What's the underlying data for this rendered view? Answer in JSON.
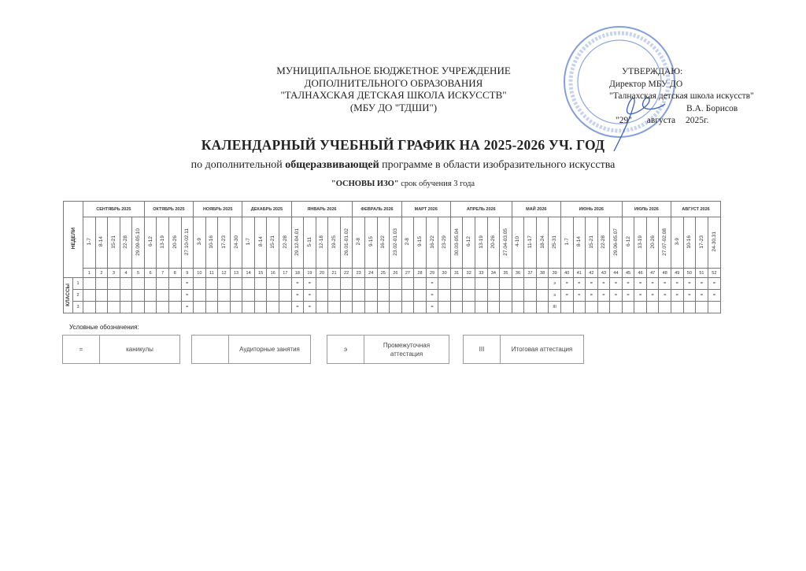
{
  "header": {
    "org_lines": [
      "МУНИЦИПАЛЬНОЕ БЮДЖЕТНОЕ УЧРЕЖДЕНИЕ",
      "ДОПОЛНИТЕЛЬНОГО ОБРАЗОВАНИЯ",
      "\"ТАЛНАХСКАЯ ДЕТСКАЯ ШКОЛА ИСКУССТВ\"",
      "(МБУ ДО \"ТДШИ\")"
    ],
    "approval": {
      "line1": "УТВЕРЖДАЮ:",
      "line2": "Директор МБУ ДО",
      "line3": "\"Талнахская детская школа искусств\"",
      "signer": "В.А. Борисов",
      "day": "\"29\"",
      "month": "августа",
      "year": "2025г."
    },
    "stamp_text": "ТАЛНАХСКАЯ ДЕТСКАЯ ШКОЛА ИСКУССТВ · НОРИЛЬСК · РОССИЙСКАЯ ФЕДЕРАЦИЯ"
  },
  "title": "КАЛЕНДАРНЫЙ УЧЕБНЫЙ ГРАФИК НА  2025-2026 УЧ. ГОД",
  "subtitle": {
    "pre": "по дополнительной ",
    "bold": "общеразвивающей",
    "post": " программе в области изобразительного искусства"
  },
  "program": {
    "bold": "\"ОСНОВЫ ИЗО\"",
    "post": " срок обучения 3 года"
  },
  "table": {
    "weeks_label": "НЕДЕЛИ",
    "classes_label": "КЛАССЫ",
    "months": [
      {
        "name": "СЕНТЯБРЬ 2025",
        "weeks": [
          "1-7",
          "8-14",
          "15-21",
          "22-28",
          "29.09-05.10"
        ]
      },
      {
        "name": "ОКТЯБРЬ 2025",
        "weeks": [
          "6-12",
          "13-19",
          "20-26",
          "27.10-02.11"
        ]
      },
      {
        "name": "НОЯБРЬ 2025",
        "weeks": [
          "3-9",
          "10-16",
          "17-23",
          "24-30"
        ]
      },
      {
        "name": "ДЕКАБРЬ 2025",
        "weeks": [
          "1-7",
          "8-14",
          "15-21",
          "22-28"
        ]
      },
      {
        "name": "ЯНВАРЬ 2026",
        "weeks": [
          "29.12-04.01",
          "5-11",
          "12-18",
          "19-25",
          "26.01-01.02"
        ]
      },
      {
        "name": "ФЕВРАЛЬ 2026",
        "weeks": [
          "2-8",
          "9-15",
          "16-22",
          "23.02-01.03"
        ]
      },
      {
        "name": "МАРТ 2026",
        "weeks": [
          "2-8",
          "9-15",
          "16-22",
          "23-29"
        ]
      },
      {
        "name": "АПРЕЛЬ 2026",
        "weeks": [
          "30.03-05.04",
          "6-12",
          "13-19",
          "20-26",
          "27.04-03.05"
        ]
      },
      {
        "name": "МАЙ 2026",
        "weeks": [
          "4-10",
          "11-17",
          "18-24",
          "25-31"
        ]
      },
      {
        "name": "ИЮНЬ 2026",
        "weeks": [
          "1-7",
          "8-14",
          "15-21",
          "22-28",
          "29.06-05.07"
        ]
      },
      {
        "name": "ИЮЛЬ 2026",
        "weeks": [
          "6-12",
          "13-19",
          "20-26",
          "27.07-02.08"
        ]
      },
      {
        "name": "АВГУСТ 2026",
        "weeks": [
          "3-9",
          "10-16",
          "17-23",
          "24-30,31"
        ]
      }
    ],
    "rows": [
      {
        "class": "1",
        "marks": {
          "9": "=",
          "18": "=",
          "19": "=",
          "29": "=",
          "39": "э",
          "40": "=",
          "41": "=",
          "42": "=",
          "43": "=",
          "44": "=",
          "45": "=",
          "46": "=",
          "47": "=",
          "48": "=",
          "49": "=",
          "50": "=",
          "51": "=",
          "52": "="
        }
      },
      {
        "class": "2",
        "marks": {
          "9": "=",
          "18": "=",
          "19": "=",
          "29": "=",
          "39": "э",
          "40": "=",
          "41": "=",
          "42": "=",
          "43": "=",
          "44": "=",
          "45": "=",
          "46": "=",
          "47": "=",
          "48": "=",
          "49": "=",
          "50": "=",
          "51": "=",
          "52": "="
        }
      },
      {
        "class": "3",
        "marks": {
          "9": "=",
          "18": "=",
          "19": "=",
          "29": "=",
          "39": "III"
        }
      }
    ]
  },
  "legend": {
    "title": "Условные обозначения:",
    "items": [
      {
        "symbol": "=",
        "label": "каникулы"
      },
      {
        "symbol": "",
        "label": "Аудиторные занятия"
      },
      {
        "symbol": "э",
        "label": "Промежуточная аттестация"
      },
      {
        "symbol": "III",
        "label": "Итоговая аттестация"
      }
    ]
  },
  "colors": {
    "stamp": "#5b7fd0",
    "signature": "#3a5fc0",
    "text": "#222222",
    "grid": "#777777"
  }
}
